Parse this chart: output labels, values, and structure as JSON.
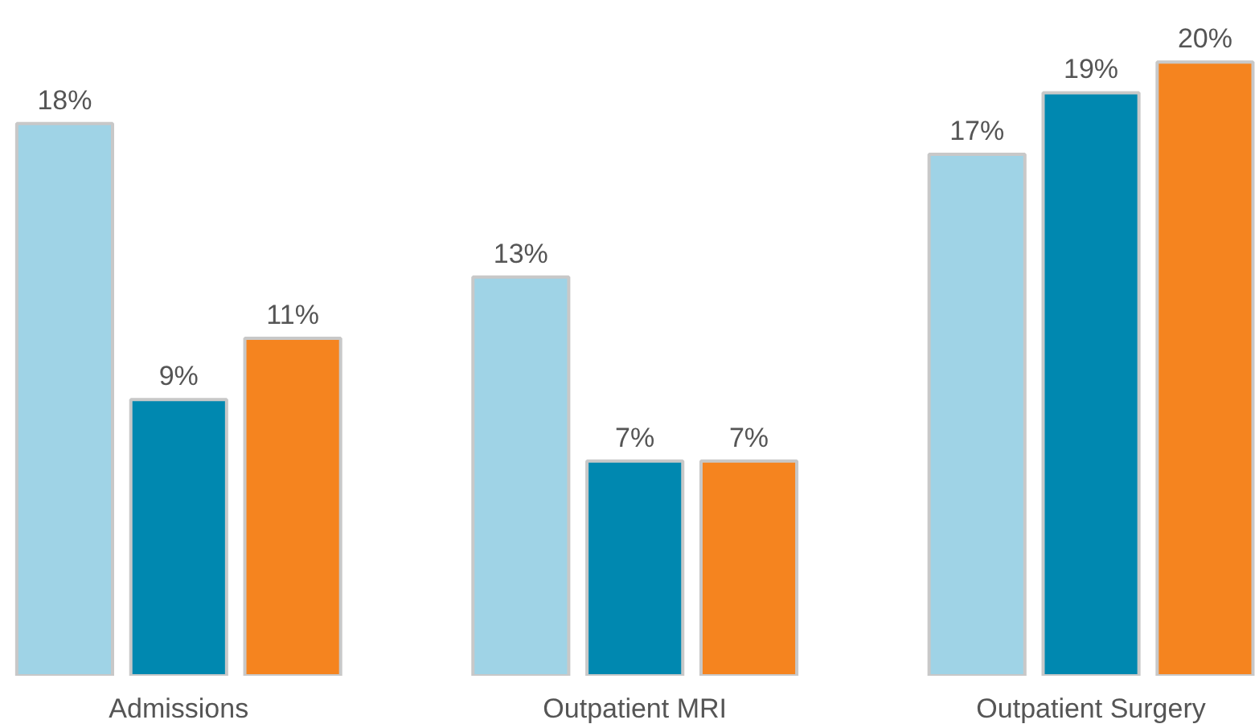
{
  "chart_data": {
    "type": "bar",
    "categories": [
      "Admissions",
      "Outpatient MRI",
      "Outpatient Surgery"
    ],
    "tick_labels": "x",
    "series": [
      {
        "color": "#9fd3e6",
        "values": [
          18,
          13,
          17
        ],
        "value_labels": [
          "18%",
          "13%",
          "17%"
        ]
      },
      {
        "color": "#0088b0",
        "values": [
          9,
          7,
          19
        ],
        "value_labels": [
          "9%",
          "7%",
          "19%"
        ]
      },
      {
        "color": "#f5841f",
        "values": [
          11,
          7,
          20
        ],
        "value_labels": [
          "11%",
          "7%",
          "20%"
        ]
      }
    ]
  }
}
